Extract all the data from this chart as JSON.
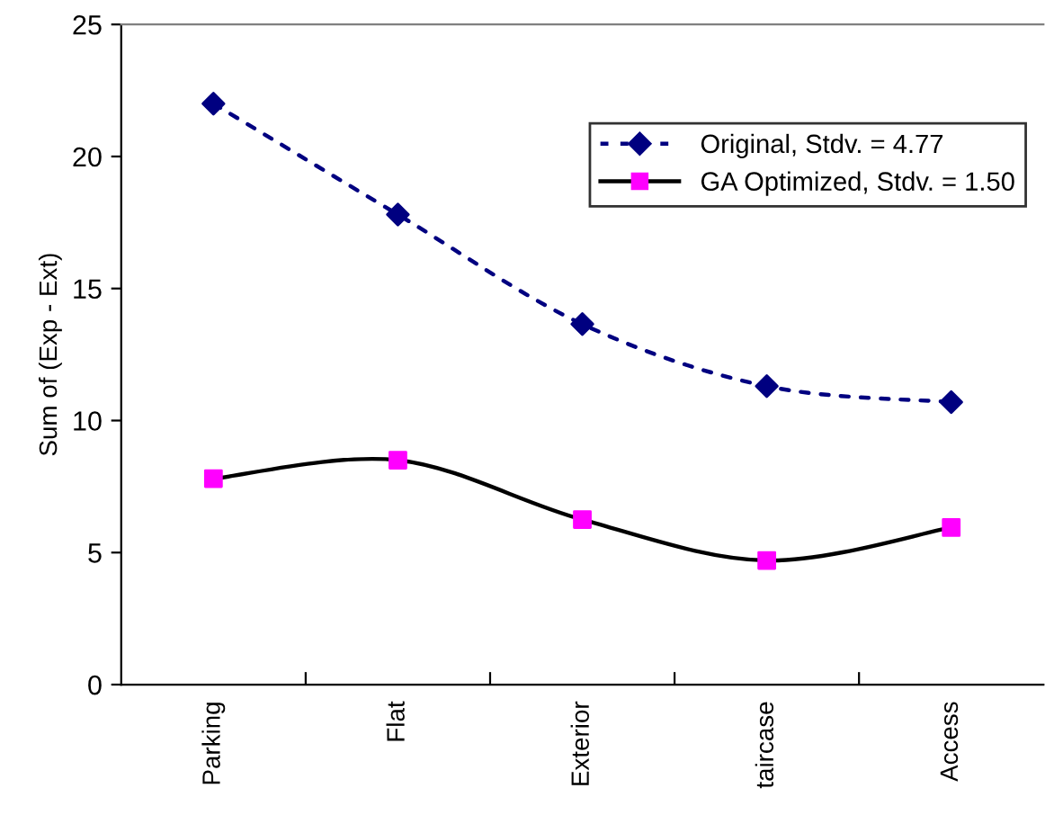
{
  "chart_data": {
    "type": "line",
    "ylabel": "Sum of (Exp - Ext)",
    "categories": [
      "Parking",
      "Flat",
      "Exterior",
      "taircase",
      "Access"
    ],
    "series": [
      {
        "name": "Original, Stdv. = 4.77",
        "color": "#000080",
        "values": [
          22.0,
          17.8,
          13.65,
          11.3,
          10.7
        ],
        "marker": "diamond",
        "line_style": "dotted"
      },
      {
        "name": "GA Optimized, Stdv. = 1.50",
        "color": "#000000",
        "colors": [
          "#ff00ff",
          "#ff00ff",
          "#ff00ff",
          "#ff00ff",
          "#ff00ff"
        ],
        "values": [
          7.8,
          8.5,
          6.25,
          4.7,
          5.95
        ],
        "marker": "square",
        "line_style": "solid"
      }
    ],
    "ylim": [
      0,
      25
    ],
    "yticks": [
      0,
      5,
      10,
      15,
      20,
      25
    ],
    "grid": false,
    "legend": "top right"
  }
}
